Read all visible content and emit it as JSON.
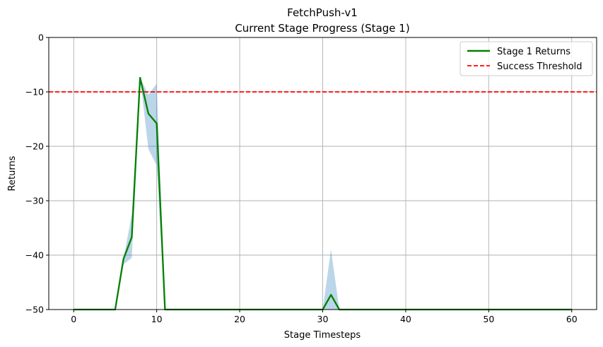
{
  "chart_data": {
    "type": "line",
    "title": "FetchPush-v1",
    "subtitle": "Current Stage Progress (Stage 1)",
    "xlabel": "Stage Timesteps",
    "ylabel": "Returns",
    "xlim": [
      -3,
      63
    ],
    "ylim": [
      -50,
      0
    ],
    "xticks": [
      0,
      10,
      20,
      30,
      40,
      50,
      60
    ],
    "yticks": [
      0,
      -10,
      -20,
      -30,
      -40,
      -50
    ],
    "xtick_labels": [
      "0",
      "10",
      "20",
      "30",
      "40",
      "50",
      "60"
    ],
    "ytick_labels": [
      "0",
      "−10",
      "−20",
      "−30",
      "−40",
      "−50"
    ],
    "grid": true,
    "legend_position": "top-right",
    "series": [
      {
        "name": "Stage 1 Returns",
        "color": "#008000",
        "x": [
          0,
          1,
          2,
          3,
          4,
          5,
          6,
          7,
          8,
          9,
          10,
          11,
          12,
          13,
          14,
          15,
          16,
          17,
          18,
          19,
          20,
          21,
          22,
          23,
          24,
          25,
          26,
          27,
          28,
          29,
          30,
          31,
          32,
          33,
          34,
          35,
          36,
          37,
          38,
          39,
          40,
          41,
          42,
          43,
          44,
          45,
          46,
          47,
          48,
          49,
          50,
          51,
          52,
          53,
          54,
          55,
          56,
          57,
          58,
          59,
          60
        ],
        "y": [
          -50,
          -50,
          -50,
          -50,
          -50,
          -50,
          -40.7,
          -36.7,
          -7.4,
          -14.0,
          -15.8,
          -50,
          -50,
          -50,
          -50,
          -50,
          -50,
          -50,
          -50,
          -50,
          -50,
          -50,
          -50,
          -50,
          -50,
          -50,
          -50,
          -50,
          -50,
          -50,
          -50,
          -47.3,
          -50,
          -50,
          -50,
          -50,
          -50,
          -50,
          -50,
          -50,
          -50,
          -50,
          -50,
          -50,
          -50,
          -50,
          -50,
          -50,
          -50,
          -50,
          -50,
          -50,
          -50,
          -50,
          -50,
          -50,
          -50,
          -50,
          -50,
          -50,
          -50
        ]
      }
    ],
    "band": {
      "color": "#1f77b4",
      "opacity": 0.3,
      "x": [
        0,
        5,
        6,
        7,
        8,
        9,
        10,
        11,
        30,
        31,
        32,
        60
      ],
      "lower": [
        -50,
        -50,
        -41.7,
        -40.5,
        -7.4,
        -20.5,
        -23.5,
        -50,
        -50,
        -50,
        -50,
        -50
      ],
      "upper": [
        -50,
        -50,
        -40.7,
        -32.5,
        -7.4,
        -10.5,
        -8.5,
        -50,
        -50,
        -38.9,
        -50,
        -50
      ]
    },
    "threshold": {
      "name": "Success Threshold",
      "value": -10,
      "color": "#ff0000"
    }
  }
}
